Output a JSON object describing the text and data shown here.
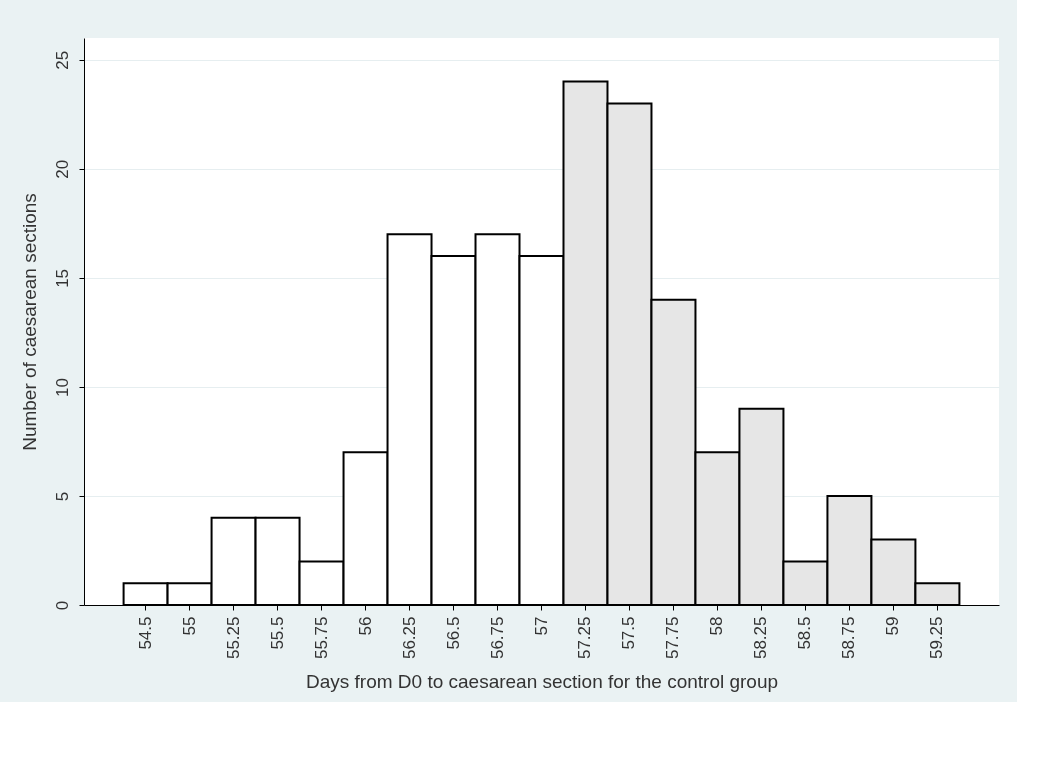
{
  "chart_data": {
    "type": "bar",
    "xlabel": "Days from D0 to caesarean section for the control group",
    "ylabel": "Number of caesarean sections",
    "categories": [
      "54.5",
      "55",
      "55.25",
      "55.5",
      "55.75",
      "56",
      "56.25",
      "56.5",
      "56.75",
      "57",
      "57.25",
      "57.5",
      "57.75",
      "58",
      "58.25",
      "58.5",
      "58.75",
      "59",
      "59.25"
    ],
    "values": [
      1,
      1,
      4,
      4,
      2,
      7,
      17,
      16,
      17,
      16,
      24,
      23,
      14,
      7,
      9,
      2,
      5,
      3,
      1
    ],
    "colors": [
      "#ffffff",
      "#ffffff",
      "#ffffff",
      "#ffffff",
      "#ffffff",
      "#ffffff",
      "#ffffff",
      "#ffffff",
      "#ffffff",
      "#ffffff",
      "#e6e6e6",
      "#e6e6e6",
      "#e6e6e6",
      "#e6e6e6",
      "#e6e6e6",
      "#e6e6e6",
      "#e6e6e6",
      "#e6e6e6",
      "#e6e6e6"
    ],
    "ylim": [
      0,
      26
    ],
    "yticks": [
      0,
      5,
      10,
      15,
      20,
      25
    ],
    "grid": "y"
  }
}
